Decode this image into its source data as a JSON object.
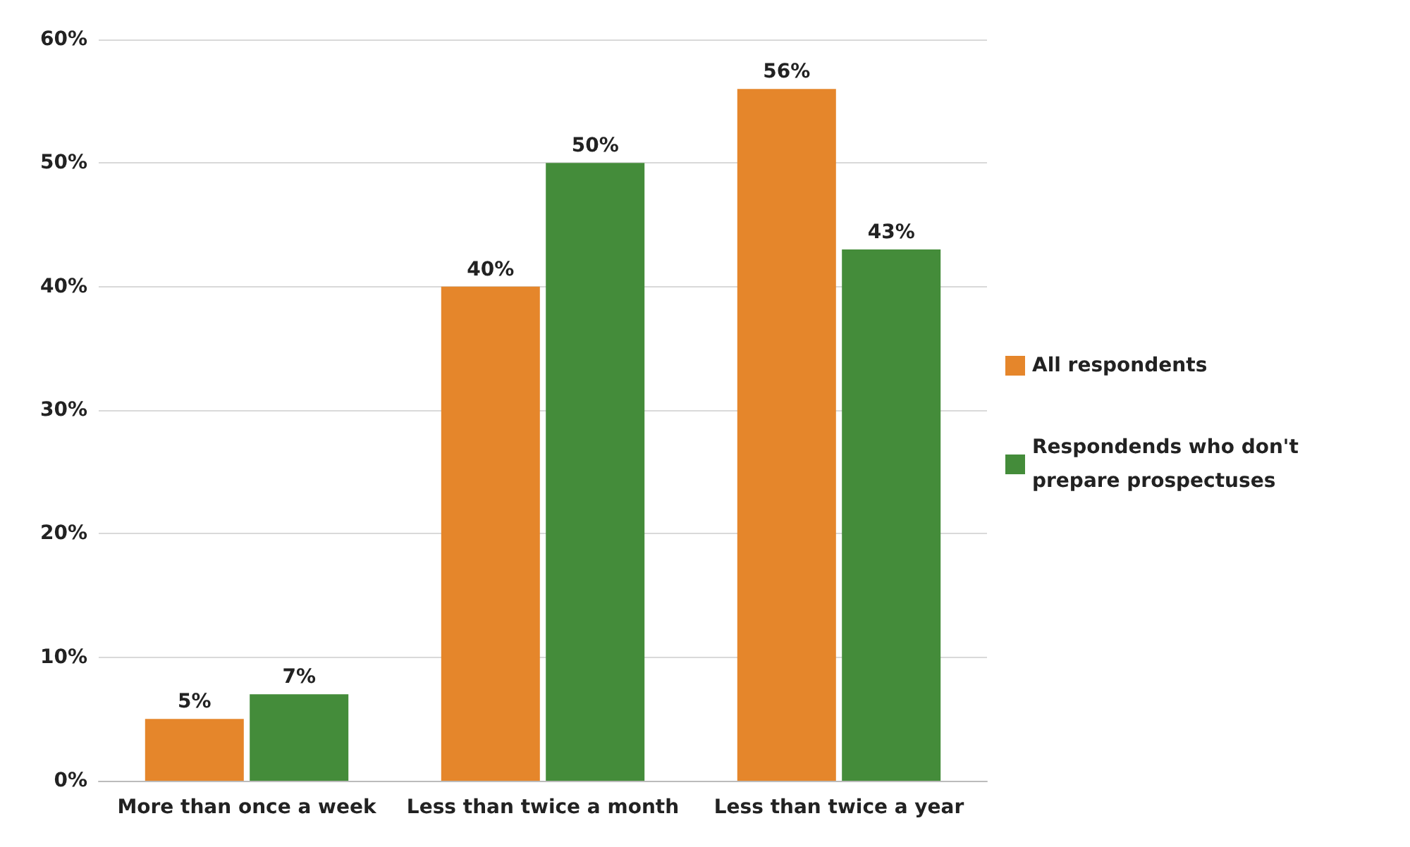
{
  "chart_data": {
    "type": "bar",
    "categories": [
      "More than once a week",
      "Less than twice a month",
      "Less than twice a year"
    ],
    "series": [
      {
        "name": "All respondents",
        "color": "#e5862b",
        "values": [
          5,
          40,
          56
        ],
        "value_labels": [
          "5%",
          "40%",
          "56%"
        ]
      },
      {
        "name": "Respondends who don't prepare prospectuses",
        "color": "#448c3a",
        "values": [
          7,
          50,
          43
        ],
        "value_labels": [
          "7%",
          "50%",
          "43%"
        ]
      }
    ],
    "ylim": [
      0,
      60
    ],
    "yticks": [
      {
        "value": 0,
        "label": "0%"
      },
      {
        "value": 10,
        "label": "10%"
      },
      {
        "value": 20,
        "label": "20%"
      },
      {
        "value": 30,
        "label": "30%"
      },
      {
        "value": 40,
        "label": "40%"
      },
      {
        "value": 50,
        "label": "50%"
      },
      {
        "value": 60,
        "label": "60%"
      }
    ],
    "grid": "y",
    "legend": "right"
  }
}
